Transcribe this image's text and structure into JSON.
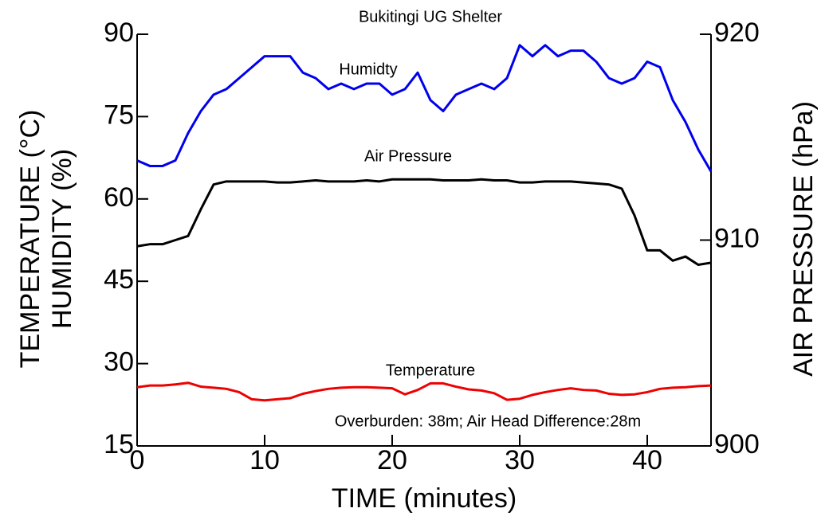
{
  "chart_data": {
    "type": "line",
    "title": "Bukitingi UG Shelter",
    "xlabel": "TIME (minutes)",
    "ylabel": [
      "TEMPERATURE (°C)",
      "HUMIDITY (%)"
    ],
    "y2label": "AIR PRESSURE (hPa)",
    "annotations": [
      "Humidty",
      "Air Pressure",
      "Temperature",
      "Overburden: 38m; Air Head Difference:28m"
    ],
    "x": [
      0,
      1,
      2,
      3,
      4,
      5,
      6,
      7,
      8,
      9,
      10,
      11,
      12,
      13,
      14,
      15,
      16,
      17,
      18,
      19,
      20,
      21,
      22,
      23,
      24,
      25,
      26,
      27,
      28,
      29,
      30,
      31,
      32,
      33,
      34,
      35,
      36,
      37,
      38,
      39,
      40,
      41,
      42,
      43,
      44,
      45
    ],
    "xlim": [
      0,
      45
    ],
    "xticks": [
      0,
      10,
      20,
      30,
      40
    ],
    "ylim": [
      15,
      90
    ],
    "yticks": [
      15,
      30,
      45,
      60,
      75,
      90
    ],
    "y2lim": [
      900,
      920
    ],
    "y2ticks": [
      900,
      910,
      920
    ],
    "series": [
      {
        "name": "Humidty",
        "color": "#0000ee",
        "values": [
          67,
          66,
          66,
          67,
          72,
          76,
          79,
          80,
          82,
          84,
          86,
          86,
          86,
          83,
          82,
          80,
          81,
          80,
          81,
          81,
          79,
          80,
          83,
          78,
          76,
          79,
          80,
          81,
          80,
          82,
          88,
          86,
          88,
          86,
          87,
          87,
          85,
          82,
          81,
          82,
          85,
          84,
          78,
          74,
          69,
          65
        ]
      },
      {
        "name": "Air Pressure",
        "color": "#000000",
        "axis": "y2",
        "values": [
          909.7,
          909.8,
          909.8,
          910,
          910.2,
          911.5,
          912.7,
          912.85,
          912.85,
          912.85,
          912.85,
          912.8,
          912.8,
          912.85,
          912.9,
          912.85,
          912.85,
          912.85,
          912.9,
          912.85,
          912.95,
          912.95,
          912.95,
          912.95,
          912.9,
          912.9,
          912.9,
          912.95,
          912.9,
          912.9,
          912.8,
          912.8,
          912.85,
          912.85,
          912.85,
          912.8,
          912.75,
          912.7,
          912.5,
          911.2,
          909.5,
          909.5,
          909,
          909.2,
          908.8,
          908.9
        ]
      },
      {
        "name": "Temperature",
        "color": "#ee0000",
        "values": [
          25.7,
          26,
          26,
          26.2,
          26.5,
          25.8,
          25.6,
          25.4,
          24.8,
          23.5,
          23.3,
          23.5,
          23.7,
          24.5,
          25,
          25.4,
          25.6,
          25.7,
          25.7,
          25.6,
          25.5,
          24.4,
          25.2,
          26.4,
          26.4,
          25.8,
          25.3,
          25.1,
          24.6,
          23.4,
          23.6,
          24.3,
          24.8,
          25.2,
          25.5,
          25.2,
          25.1,
          24.5,
          24.3,
          24.4,
          24.8,
          25.4,
          25.6,
          25.7,
          25.9,
          26
        ]
      }
    ]
  }
}
